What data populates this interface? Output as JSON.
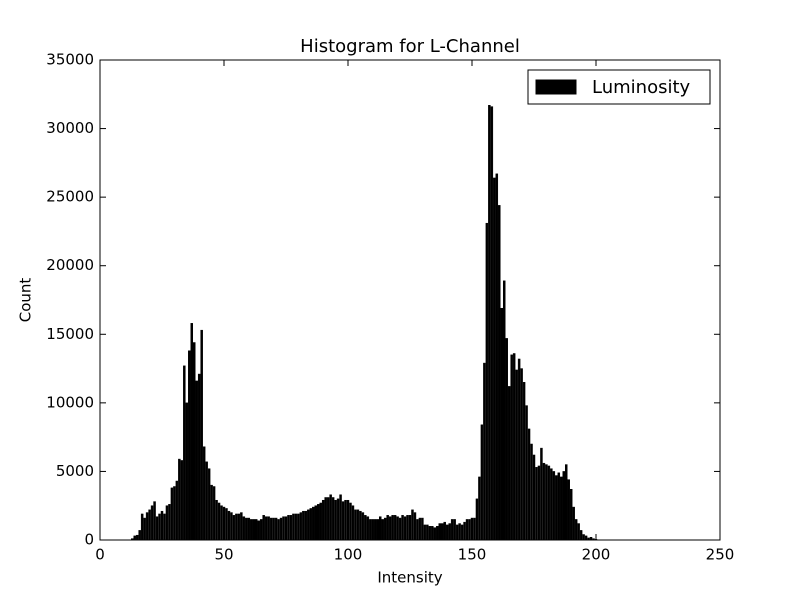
{
  "chart_data": {
    "type": "bar",
    "title": "Histogram for L-Channel",
    "xlabel": "Intensity",
    "ylabel": "Count",
    "x": [
      13,
      14,
      15,
      16,
      17,
      18,
      19,
      20,
      21,
      22,
      23,
      24,
      25,
      26,
      27,
      28,
      29,
      30,
      31,
      32,
      33,
      34,
      35,
      36,
      37,
      38,
      39,
      40,
      41,
      42,
      43,
      44,
      45,
      46,
      47,
      48,
      49,
      50,
      51,
      52,
      53,
      54,
      55,
      56,
      57,
      58,
      59,
      60,
      61,
      62,
      63,
      64,
      65,
      66,
      67,
      68,
      69,
      70,
      71,
      72,
      73,
      74,
      75,
      76,
      77,
      78,
      79,
      80,
      81,
      82,
      83,
      84,
      85,
      86,
      87,
      88,
      89,
      90,
      91,
      92,
      93,
      94,
      95,
      96,
      97,
      98,
      99,
      100,
      101,
      102,
      103,
      104,
      105,
      106,
      107,
      108,
      109,
      110,
      111,
      112,
      113,
      114,
      115,
      116,
      117,
      118,
      119,
      120,
      121,
      122,
      123,
      124,
      125,
      126,
      127,
      128,
      129,
      130,
      131,
      132,
      133,
      134,
      135,
      136,
      137,
      138,
      139,
      140,
      141,
      142,
      143,
      144,
      145,
      146,
      147,
      148,
      149,
      150,
      151,
      152,
      153,
      154,
      155,
      156,
      157,
      158,
      159,
      160,
      161,
      162,
      163,
      164,
      165,
      166,
      167,
      168,
      169,
      170,
      171,
      172,
      173,
      174,
      175,
      176,
      177,
      178,
      179,
      180,
      181,
      182,
      183,
      184,
      185,
      186,
      187,
      188,
      189,
      190,
      191,
      192,
      193,
      194,
      195,
      196,
      197,
      198,
      199,
      200
    ],
    "series": [
      {
        "name": "Luminosity",
        "color": "#000000",
        "values": [
          100,
          300,
          350,
          700,
          1900,
          1600,
          2000,
          2200,
          2500,
          2800,
          1700,
          1900,
          2100,
          1900,
          2500,
          2600,
          3800,
          3900,
          4300,
          5900,
          5800,
          12700,
          10000,
          13800,
          15800,
          14400,
          11600,
          12100,
          15300,
          6800,
          5700,
          5200,
          4000,
          3900,
          2900,
          2700,
          2500,
          2400,
          2300,
          2100,
          2000,
          1800,
          1900,
          1900,
          2000,
          1700,
          1600,
          1600,
          1500,
          1500,
          1500,
          1400,
          1500,
          1800,
          1700,
          1700,
          1600,
          1600,
          1600,
          1500,
          1600,
          1700,
          1700,
          1800,
          1800,
          1900,
          1900,
          1900,
          2000,
          2100,
          2100,
          2200,
          2300,
          2400,
          2500,
          2600,
          2700,
          2900,
          3100,
          3100,
          3300,
          3100,
          2900,
          3000,
          3300,
          2800,
          2900,
          2900,
          2700,
          2500,
          2200,
          2200,
          2100,
          2000,
          1800,
          1700,
          1500,
          1500,
          1500,
          1500,
          1700,
          1500,
          1600,
          1800,
          1700,
          1800,
          1800,
          1700,
          1600,
          1800,
          1700,
          1800,
          1800,
          2200,
          2000,
          1500,
          1600,
          1600,
          1100,
          1100,
          1000,
          1000,
          900,
          1000,
          1200,
          1200,
          1300,
          1100,
          1200,
          1500,
          1500,
          1100,
          1200,
          1100,
          1300,
          1500,
          1500,
          1600,
          1600,
          3000,
          4600,
          8400,
          12900,
          23100,
          31700,
          31600,
          26400,
          26700,
          24400,
          16900,
          18900,
          14700,
          11200,
          13500,
          13600,
          12400,
          13200,
          12500,
          11500,
          9800,
          8100,
          7000,
          6200,
          5300,
          5400,
          6700,
          5600,
          5500,
          5400,
          5200,
          5000,
          4700,
          4900,
          4600,
          5000,
          5500,
          4400,
          3700,
          2400,
          1500,
          1200,
          700,
          400,
          300,
          150,
          200,
          100,
          50
        ]
      }
    ],
    "xlim": [
      0,
      250
    ],
    "xticks": [
      0,
      50,
      100,
      150,
      200,
      250
    ],
    "ylim": [
      0,
      35000
    ],
    "yticks": [
      0,
      5000,
      10000,
      15000,
      20000,
      25000,
      30000,
      35000
    ],
    "legend": "upper right"
  }
}
